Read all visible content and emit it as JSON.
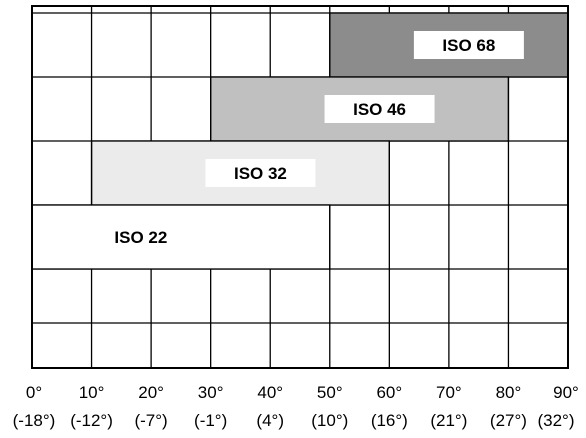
{
  "chart_data": {
    "type": "bar",
    "orientation": "horizontal-range",
    "title": "",
    "xlabel": "",
    "ylabel": "",
    "xlim": [
      0,
      90
    ],
    "x_ticks": [
      0,
      10,
      20,
      30,
      40,
      50,
      60,
      70,
      80,
      90
    ],
    "x_tick_labels": [
      "0°",
      "10°",
      "20°",
      "30°",
      "40°",
      "50°",
      "60°",
      "70°",
      "80°",
      "90°"
    ],
    "x_tick_sublabels": [
      "(-18°)",
      "(-12°)",
      "(-7°)",
      "(-1°)",
      "(4°)",
      "(10°)",
      "(16°)",
      "(21°)",
      "(27°)",
      "(32°)"
    ],
    "grid": "vertical lines at ticks, horizontal row separators",
    "legend": "none",
    "series": [
      {
        "name": "ISO 68",
        "start": 50,
        "end": 90,
        "color": "#8c8c8c"
      },
      {
        "name": "ISO 46",
        "start": 30,
        "end": 80,
        "color": "#c0c0c0"
      },
      {
        "name": "ISO 32",
        "start": 10,
        "end": 60,
        "color": "#ebebeb"
      },
      {
        "name": "ISO 22",
        "start": 0,
        "end": 50,
        "color": "#ffffff"
      }
    ]
  }
}
